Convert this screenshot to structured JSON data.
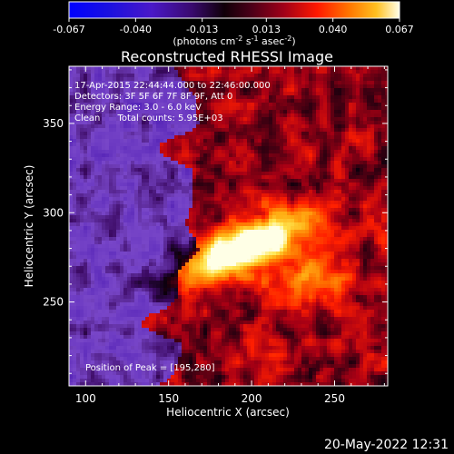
{
  "chart_data": {
    "type": "heatmap",
    "title": "Reconstructed RHESSI Image",
    "xlabel": "Heliocentric X (arcsec)",
    "ylabel": "Heliocentric Y (arcsec)",
    "xlim": [
      90,
      282
    ],
    "ylim": [
      203,
      382
    ],
    "x_ticks": [
      100,
      150,
      200,
      250
    ],
    "y_ticks": [
      250,
      300,
      350
    ],
    "colorbar": {
      "label_prefix": "(photons cm",
      "label_sup1": "-2",
      "label_mid": " s",
      "label_sup2": "-1",
      "label_mid2": " asec",
      "label_sup3": "-2",
      "label_suffix": ")",
      "range": [
        -0.067,
        0.067
      ],
      "ticks": [
        "-0.067",
        "-0.040",
        "-0.013",
        "0.013",
        "0.040",
        "0.067"
      ]
    },
    "peak": {
      "x": 195,
      "y": 280
    },
    "colormap": [
      "#0000ff",
      "#3a0ad0",
      "#6a1fb0",
      "#8040c0",
      "#3a0860",
      "#1a0010",
      "#5a0010",
      "#c00010",
      "#ff2000",
      "#ff7000",
      "#ffb000",
      "#ffe040",
      "#ffffe0"
    ]
  },
  "annotations": {
    "time_range": "17-Apr-2015 22:44:44.000 to 22:46:00.000",
    "detectors": "Detectors: 3F 5F 6F 7F 8F 9F, Att 0",
    "energy": "Energy Range: 3.0 - 6.0 keV",
    "clean": "Clean      Total counts: 5.95E+03",
    "peak_label": "Position of Peak = [195,280]"
  },
  "timestamp": "20-May-2022 12:31"
}
